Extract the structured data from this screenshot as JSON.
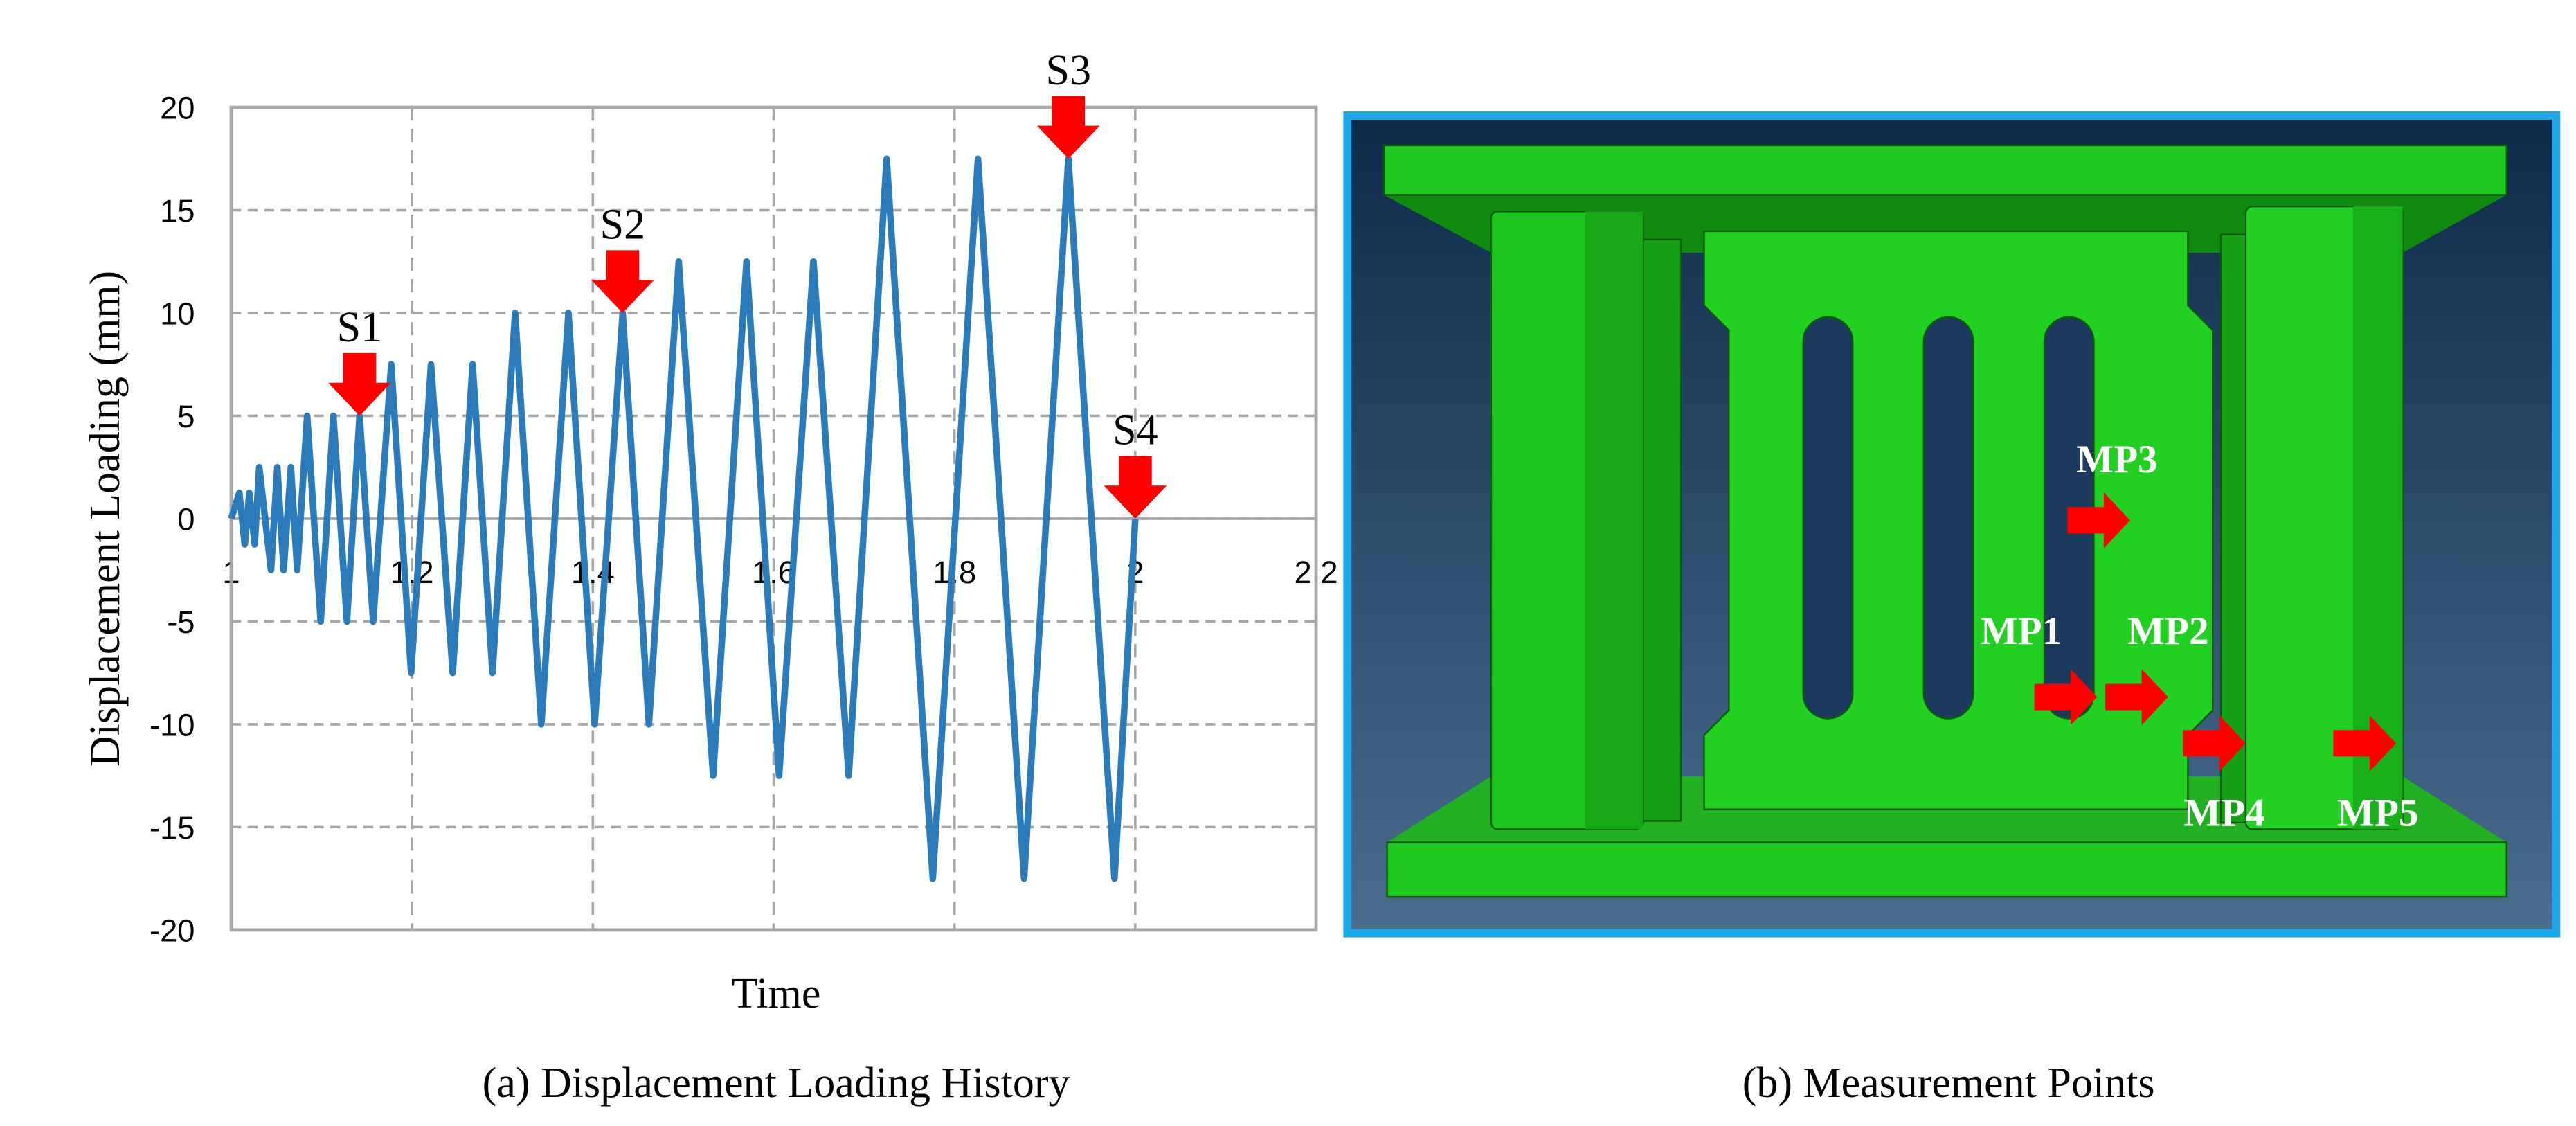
{
  "chart_data": {
    "type": "line",
    "x_label": "Time",
    "y_label": "Displacement Loading (mm)",
    "color": "#2b7bba",
    "x": [
      1.0,
      1.009,
      1.015,
      1.02,
      1.026,
      1.031,
      1.044,
      1.051,
      1.058,
      1.066,
      1.073,
      1.084,
      1.099,
      1.113,
      1.128,
      1.142,
      1.157,
      1.177,
      1.199,
      1.221,
      1.245,
      1.267,
      1.289,
      1.314,
      1.343,
      1.373,
      1.402,
      1.433,
      1.462,
      1.495,
      1.533,
      1.57,
      1.606,
      1.644,
      1.683,
      1.725,
      1.776,
      1.826,
      1.877,
      1.926,
      1.977,
      2.0
    ],
    "values": [
      0,
      1.25,
      -1.25,
      1.25,
      -1.25,
      2.5,
      -2.5,
      2.5,
      -2.5,
      2.5,
      -2.5,
      5,
      -5,
      5,
      -5,
      5,
      -5,
      7.5,
      -7.5,
      7.5,
      -7.5,
      7.5,
      -7.5,
      10,
      -10,
      10,
      -10,
      10,
      -10,
      12.5,
      -12.5,
      12.5,
      -12.5,
      12.5,
      -12.5,
      17.5,
      -17.5,
      17.5,
      -17.5,
      17.5,
      -17.5,
      0
    ],
    "xlim": [
      1,
      2.2
    ],
    "xticks": [
      1,
      1.2,
      1.4,
      1.6,
      1.8,
      2,
      2.2
    ],
    "ylim": [
      -20,
      20
    ],
    "yticks": [
      -20,
      -15,
      -10,
      -5,
      0,
      5,
      10,
      15,
      20
    ],
    "grid": true,
    "annotations": [
      "S1",
      "S2",
      "S3",
      "S4"
    ]
  },
  "captions": [
    "(a) Displacement Loading History",
    "(b) Measurement Points"
  ],
  "figure_b": {
    "labels": [
      "MP1",
      "MP2",
      "MP3",
      "MP4",
      "MP5"
    ]
  }
}
